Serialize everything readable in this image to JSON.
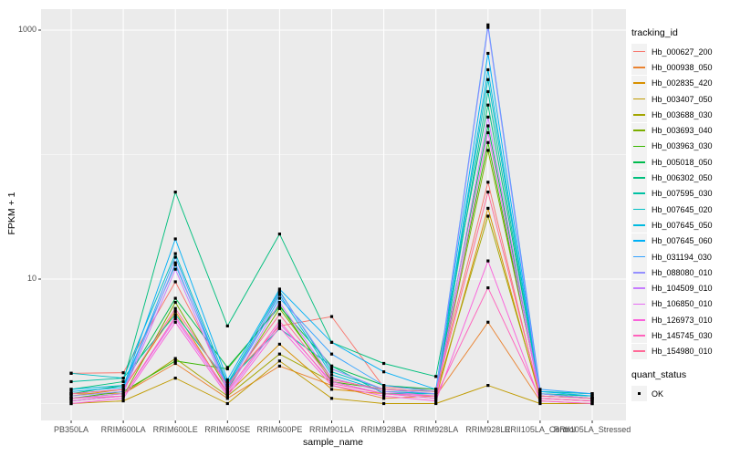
{
  "figure": {
    "y_axis_title": "FPKM + 1",
    "x_axis_title": "sample_name",
    "y_tick_labels": [
      "1000",
      "10"
    ]
  },
  "legend": {
    "tracking_title": "tracking_id",
    "quant_title": "quant_status",
    "quant_items": [
      {
        "label": "OK"
      }
    ]
  },
  "chart_data": {
    "type": "line",
    "title": "",
    "xlabel": "sample_name",
    "ylabel": "FPKM + 1",
    "y_scale": "log10",
    "y_major_ticks": [
      10,
      1000
    ],
    "y_minor_ticks": [
      1,
      100
    ],
    "ylim": [
      0.75,
      1500
    ],
    "grid": "on",
    "legend_position": "right",
    "panel_bg": "#EBEBEB",
    "grid_color": "#FFFFFF",
    "point_color": "#000000",
    "tick_color": "#333333",
    "x_categories": [
      "PB350LA",
      "RRIM600LA",
      "RRIM600LE",
      "RRIM600SE",
      "RRIM600PE",
      "RRIM901LA",
      "RRIM928BA",
      "RRIM928LA",
      "RRIM928LE",
      "RRII105LA_Control",
      "RRII105LA_Stressed"
    ],
    "series": [
      {
        "name": "Hb_000627_200",
        "color": "#F8766D",
        "values": [
          1.75,
          1.77,
          9.5,
          1.5,
          4.2,
          5.0,
          1.35,
          1.3,
          60,
          1.1,
          1.05
        ]
      },
      {
        "name": "Hb_000938_050",
        "color": "#EA8331",
        "values": [
          1.2,
          1.2,
          2.1,
          1.1,
          2.0,
          1.4,
          1.1,
          1.15,
          4.5,
          1.05,
          1.0
        ]
      },
      {
        "name": "Hb_002835_420",
        "color": "#D89000",
        "values": [
          1.15,
          1.3,
          5.5,
          1.2,
          3.0,
          1.3,
          1.2,
          1.1,
          37,
          1.1,
          1.05
        ]
      },
      {
        "name": "Hb_003407_050",
        "color": "#C09B00",
        "values": [
          1.0,
          1.05,
          1.6,
          1.0,
          2.2,
          1.1,
          1.0,
          1.0,
          1.4,
          1.0,
          1.0
        ]
      },
      {
        "name": "Hb_003688_030",
        "color": "#A3A500",
        "values": [
          1.1,
          1.2,
          2.3,
          1.15,
          2.5,
          1.5,
          1.2,
          1.2,
          32,
          1.15,
          1.1
        ]
      },
      {
        "name": "Hb_003693_040",
        "color": "#7CAE00",
        "values": [
          1.05,
          1.15,
          6.5,
          1.3,
          5.8,
          1.6,
          1.25,
          1.2,
          108,
          1.2,
          1.1
        ]
      },
      {
        "name": "Hb_003963_030",
        "color": "#39B600",
        "values": [
          1.1,
          1.25,
          2.2,
          1.9,
          6.2,
          1.5,
          1.3,
          1.25,
          125,
          1.15,
          1.1
        ]
      },
      {
        "name": "Hb_005018_050",
        "color": "#00BB4E",
        "values": [
          1.2,
          1.4,
          7.0,
          1.95,
          6.0,
          2.0,
          1.4,
          1.3,
          170,
          1.2,
          1.15
        ]
      },
      {
        "name": "Hb_006302_050",
        "color": "#00BF7D",
        "values": [
          1.3,
          1.5,
          50,
          4.2,
          23,
          3.1,
          2.1,
          1.65,
          250,
          1.25,
          1.2
        ]
      },
      {
        "name": "Hb_007595_030",
        "color": "#00C1A3",
        "values": [
          1.5,
          1.6,
          5.2,
          1.5,
          4.0,
          2.0,
          1.2,
          1.2,
          320,
          1.2,
          1.15
        ]
      },
      {
        "name": "Hb_007645_020",
        "color": "#00BFC4",
        "values": [
          1.75,
          1.6,
          16,
          1.45,
          8.0,
          1.8,
          1.3,
          1.25,
          400,
          1.25,
          1.2
        ]
      },
      {
        "name": "Hb_007645_050",
        "color": "#00BAE0",
        "values": [
          1.3,
          1.4,
          13,
          1.4,
          7.5,
          1.7,
          1.25,
          1.2,
          480,
          1.2,
          1.1
        ]
      },
      {
        "name": "Hb_007645_060",
        "color": "#00B0F6",
        "values": [
          1.25,
          1.35,
          21,
          1.55,
          8.3,
          3.1,
          1.8,
          1.3,
          650,
          1.25,
          1.15
        ]
      },
      {
        "name": "Hb_031194_030",
        "color": "#35A2FF",
        "values": [
          1.2,
          1.3,
          15,
          1.35,
          7.0,
          2.5,
          1.4,
          1.25,
          1100,
          1.3,
          1.2
        ]
      },
      {
        "name": "Hb_088080_010",
        "color": "#9590FF",
        "values": [
          1.15,
          1.25,
          13.5,
          1.3,
          7.8,
          1.9,
          1.3,
          1.2,
          1050,
          1.2,
          1.1
        ]
      },
      {
        "name": "Hb_104509_010",
        "color": "#C77CFF",
        "values": [
          1.1,
          1.2,
          12,
          1.25,
          6.5,
          1.6,
          1.25,
          1.15,
          200,
          1.15,
          1.1
        ]
      },
      {
        "name": "Hb_106850_010",
        "color": "#E76BF3",
        "values": [
          1.05,
          1.15,
          4.8,
          1.2,
          4.4,
          1.5,
          1.2,
          1.1,
          150,
          1.1,
          1.05
        ]
      },
      {
        "name": "Hb_126973_010",
        "color": "#FA62DB",
        "values": [
          1.0,
          1.1,
          4.5,
          1.15,
          4.1,
          1.4,
          1.15,
          1.05,
          14,
          1.05,
          1.0
        ]
      },
      {
        "name": "Hb_145745_030",
        "color": "#FF62BC",
        "values": [
          1.1,
          1.15,
          5.0,
          1.25,
          4.6,
          1.45,
          1.2,
          1.15,
          8.5,
          1.1,
          1.05
        ]
      },
      {
        "name": "Hb_154980_010",
        "color": "#FF6A98",
        "values": [
          1.2,
          1.3,
          5.8,
          1.4,
          5.2,
          1.55,
          1.3,
          1.25,
          50,
          1.15,
          1.1
        ]
      }
    ]
  }
}
